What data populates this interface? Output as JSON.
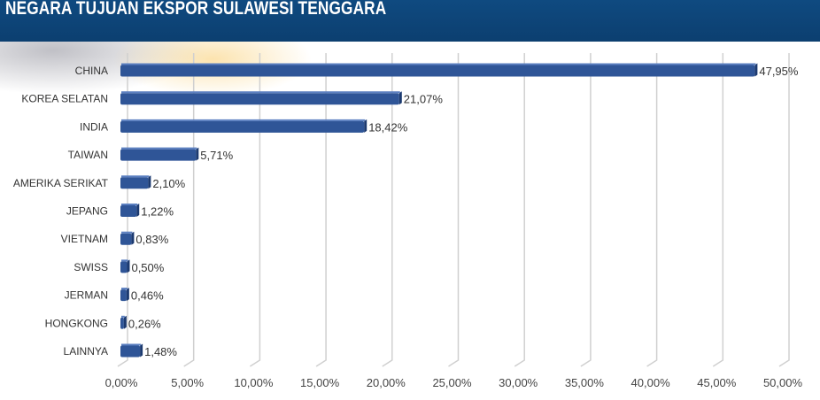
{
  "title": "NEGARA TUJUAN EKSPOR SULAWESI TENGGARA",
  "chart_data": {
    "type": "bar",
    "orientation": "horizontal",
    "title": "NEGARA TUJUAN EKSPOR SULAWESI TENGGARA",
    "categories": [
      "CHINA",
      "KOREA SELATAN",
      "INDIA",
      "TAIWAN",
      "AMERIKA SERIKAT",
      "JEPANG",
      "VIETNAM",
      "SWISS",
      "JERMAN",
      "HONGKONG",
      "LAINNYA"
    ],
    "values": [
      47.95,
      21.07,
      18.42,
      5.71,
      2.1,
      1.22,
      0.83,
      0.5,
      0.46,
      0.26,
      1.48
    ],
    "data_labels": [
      "47,95%",
      "21,07%",
      "18,42%",
      "5,71%",
      "2,10%",
      "1,22%",
      "0,83%",
      "0,50%",
      "0,46%",
      "0,26%",
      "1,48%"
    ],
    "xlim": [
      0,
      50
    ],
    "xticks": [
      "0,00%",
      "5,00%",
      "10,00%",
      "15,00%",
      "20,00%",
      "25,00%",
      "30,00%",
      "35,00%",
      "40,00%",
      "45,00%",
      "50,00%"
    ],
    "grid": true,
    "bar_color": "#2f5597",
    "header_color": "#0f4a80"
  }
}
